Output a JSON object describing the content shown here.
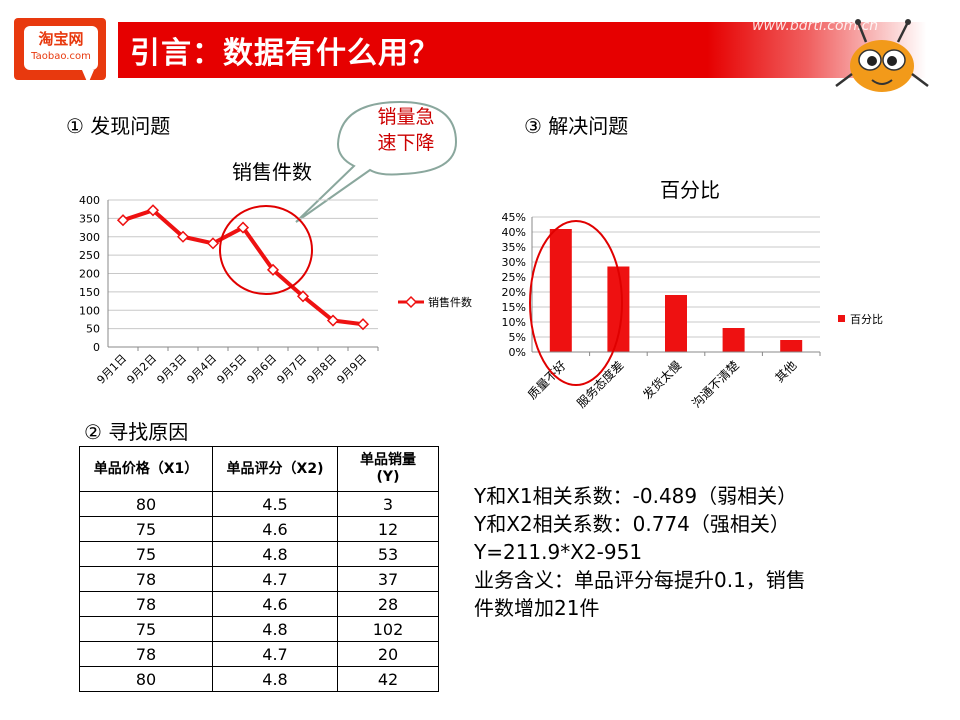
{
  "header": {
    "logo_cn": "淘宝网",
    "logo_en": "Taobao.com",
    "title": "引言：数据有什么用？",
    "watermark": "www.bdrtl.com.cn"
  },
  "sections": {
    "discover": "① 发现问题",
    "reason": "② 寻找原因",
    "solve": "③ 解决问题"
  },
  "callout": {
    "text_line1": "销量急",
    "text_line2": "速下降"
  },
  "chart_data": [
    {
      "type": "line",
      "title": "销售件数",
      "categories": [
        "9月1日",
        "9月2日",
        "9月3日",
        "9月4日",
        "9月5日",
        "9月6日",
        "9月7日",
        "9月8日",
        "9月9日"
      ],
      "series": [
        {
          "name": "销售件数",
          "values": [
            345,
            372,
            300,
            282,
            325,
            210,
            138,
            72,
            62
          ]
        }
      ],
      "yticks": [
        "0",
        "50",
        "100",
        "150",
        "200",
        "250",
        "300",
        "350",
        "400"
      ],
      "ylim": [
        0,
        400
      ],
      "color": "#ee1111",
      "legend": "right"
    },
    {
      "type": "bar",
      "title": "百分比",
      "categories": [
        "质量不好",
        "服务态度差",
        "发货太慢",
        "沟通不清楚",
        "其他"
      ],
      "series": [
        {
          "name": "百分比",
          "values": [
            0.41,
            0.285,
            0.19,
            0.08,
            0.04
          ]
        }
      ],
      "yticks": [
        "0%",
        "5%",
        "10%",
        "15%",
        "20%",
        "25%",
        "30%",
        "35%",
        "40%",
        "45%"
      ],
      "ylim": [
        0,
        0.45
      ],
      "color": "#ee1111",
      "legend": "right"
    }
  ],
  "table": {
    "headers": [
      "单品价格（X1）",
      "单品评分（X2)",
      "单品销量\n(Y)"
    ],
    "rows": [
      [
        "80",
        "4.5",
        "3"
      ],
      [
        "75",
        "4.6",
        "12"
      ],
      [
        "75",
        "4.8",
        "53"
      ],
      [
        "78",
        "4.7",
        "37"
      ],
      [
        "78",
        "4.6",
        "28"
      ],
      [
        "75",
        "4.8",
        "102"
      ],
      [
        "78",
        "4.7",
        "20"
      ],
      [
        "80",
        "4.8",
        "42"
      ]
    ]
  },
  "analysis": {
    "line1": "Y和X1相关系数：-0.489（弱相关）",
    "line2": "Y和X2相关系数：0.774（强相关）",
    "line3": "Y=211.9*X2-951",
    "line4": "业务含义：单品评分每提升0.1，销售",
    "line5": "件数增加21件"
  },
  "colors": {
    "accent": "#e60000",
    "line": "#ee1111",
    "callout": "#cc0000"
  }
}
